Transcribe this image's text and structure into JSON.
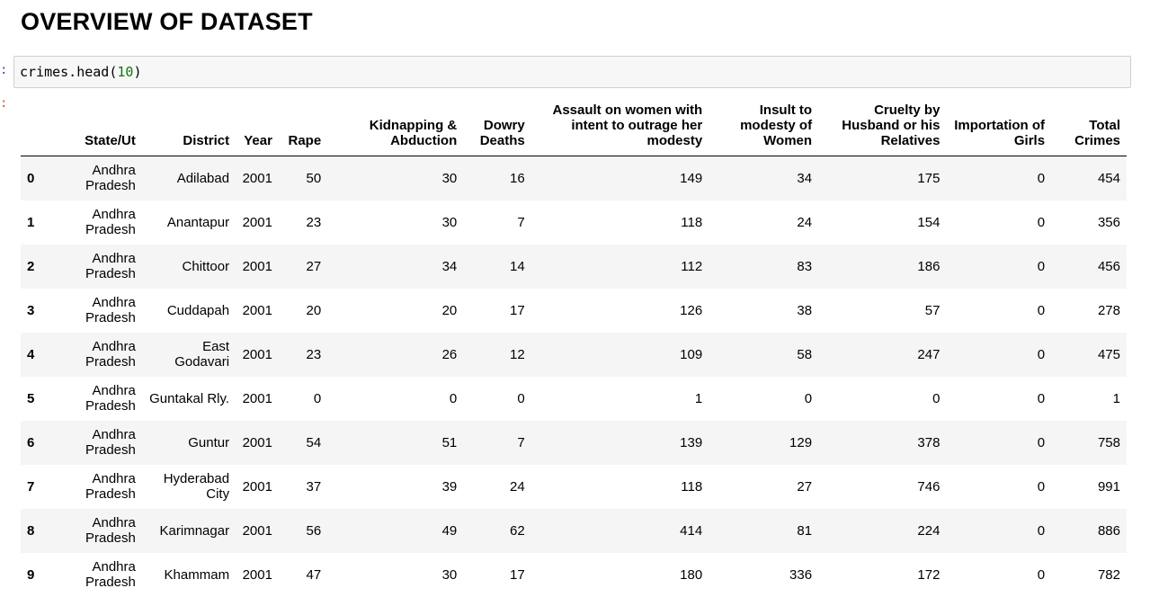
{
  "heading": "OVERVIEW OF DATASET",
  "cell": {
    "in_prompt": ":",
    "code_prefix": "crimes.head(",
    "code_arg": "10",
    "code_suffix": ")",
    "out_prompt": ":"
  },
  "table": {
    "columns": [
      "",
      "State/Ut",
      "District",
      "Year",
      "Rape",
      "Kidnapping & Abduction",
      "Dowry Deaths",
      "Assault on women with intent to outrage her modesty",
      "Insult to modesty of Women",
      "Cruelty by Husband or his Relatives",
      "Importation of Girls",
      "Total Crimes"
    ],
    "rows": [
      [
        "0",
        "Andhra Pradesh",
        "Adilabad",
        "2001",
        "50",
        "30",
        "16",
        "149",
        "34",
        "175",
        "0",
        "454"
      ],
      [
        "1",
        "Andhra Pradesh",
        "Anantapur",
        "2001",
        "23",
        "30",
        "7",
        "118",
        "24",
        "154",
        "0",
        "356"
      ],
      [
        "2",
        "Andhra Pradesh",
        "Chittoor",
        "2001",
        "27",
        "34",
        "14",
        "112",
        "83",
        "186",
        "0",
        "456"
      ],
      [
        "3",
        "Andhra Pradesh",
        "Cuddapah",
        "2001",
        "20",
        "20",
        "17",
        "126",
        "38",
        "57",
        "0",
        "278"
      ],
      [
        "4",
        "Andhra Pradesh",
        "East Godavari",
        "2001",
        "23",
        "26",
        "12",
        "109",
        "58",
        "247",
        "0",
        "475"
      ],
      [
        "5",
        "Andhra Pradesh",
        "Guntakal Rly.",
        "2001",
        "0",
        "0",
        "0",
        "1",
        "0",
        "0",
        "0",
        "1"
      ],
      [
        "6",
        "Andhra Pradesh",
        "Guntur",
        "2001",
        "54",
        "51",
        "7",
        "139",
        "129",
        "378",
        "0",
        "758"
      ],
      [
        "7",
        "Andhra Pradesh",
        "Hyderabad City",
        "2001",
        "37",
        "39",
        "24",
        "118",
        "27",
        "746",
        "0",
        "991"
      ],
      [
        "8",
        "Andhra Pradesh",
        "Karimnagar",
        "2001",
        "56",
        "49",
        "62",
        "414",
        "81",
        "224",
        "0",
        "886"
      ],
      [
        "9",
        "Andhra Pradesh",
        "Khammam",
        "2001",
        "47",
        "30",
        "17",
        "180",
        "336",
        "172",
        "0",
        "782"
      ]
    ]
  }
}
